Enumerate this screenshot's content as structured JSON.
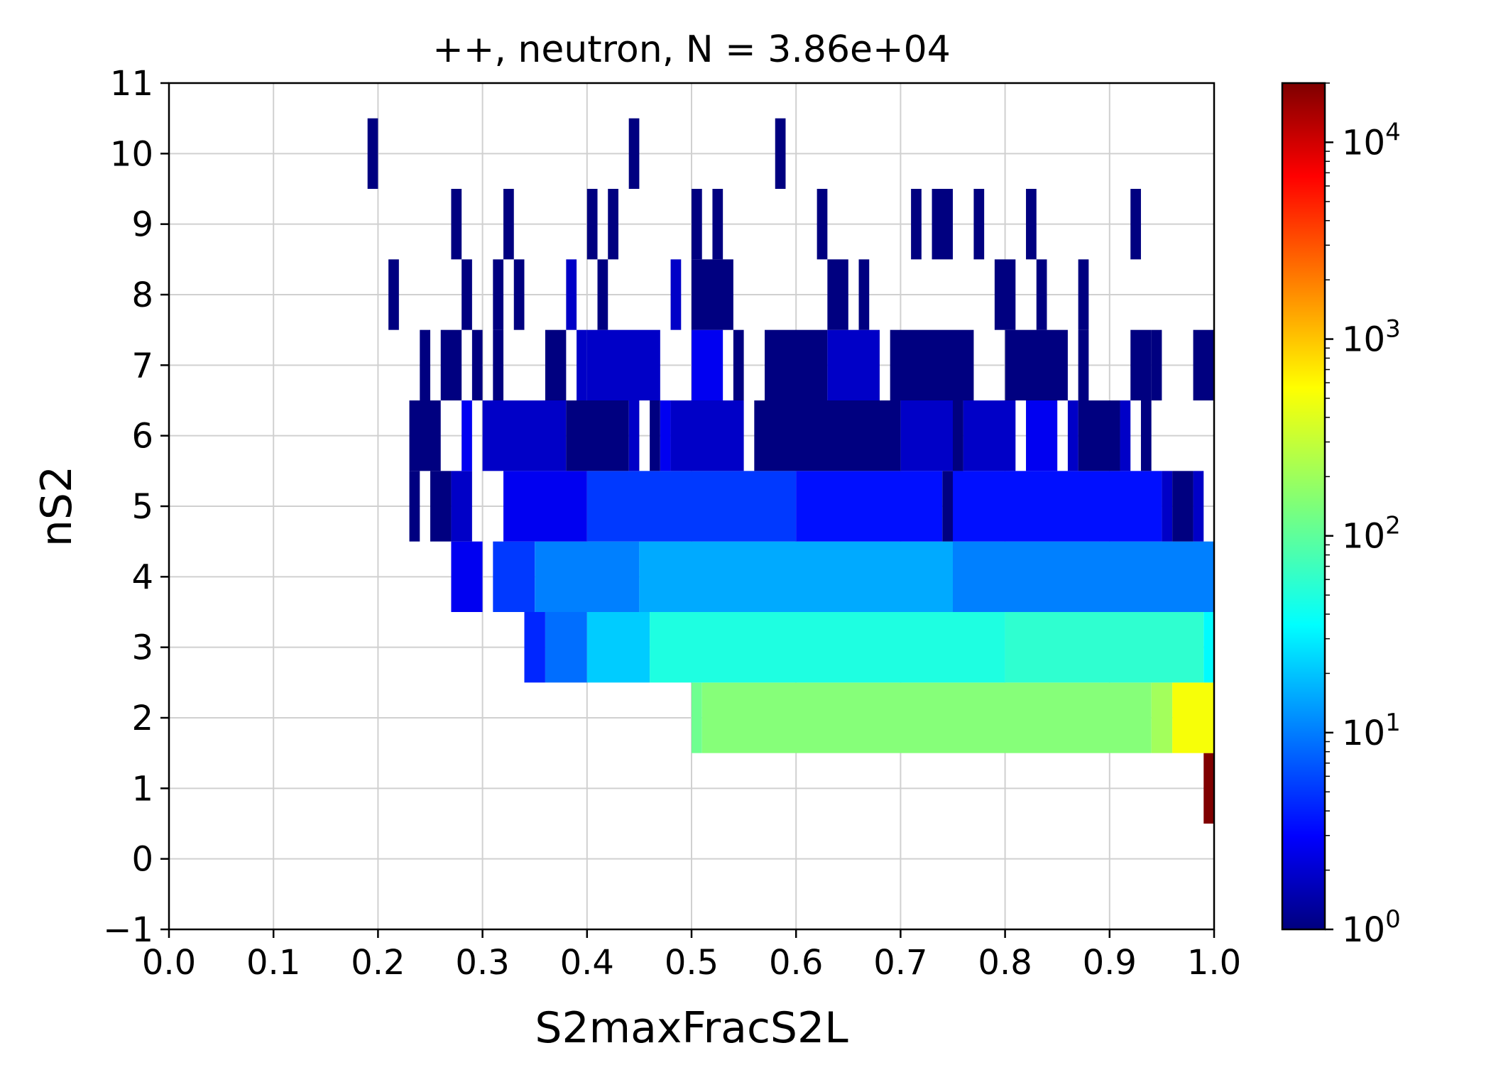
{
  "chart_data": {
    "type": "heatmap",
    "title": "++, neutron, N = 3.86e+04",
    "xlabel": "S2maxFracS2L",
    "ylabel": "nS2",
    "xlim": [
      0.0,
      1.0
    ],
    "ylim": [
      -1,
      11
    ],
    "x_ticks": [
      "0.0",
      "0.1",
      "0.2",
      "0.3",
      "0.4",
      "0.5",
      "0.6",
      "0.7",
      "0.8",
      "0.9",
      "1.0"
    ],
    "y_ticks": [
      "−1",
      "0",
      "1",
      "2",
      "3",
      "4",
      "5",
      "6",
      "7",
      "8",
      "9",
      "10",
      "11"
    ],
    "grid": true,
    "colormap": "jet",
    "colorbar": {
      "scale": "log",
      "range": [
        1,
        20000
      ],
      "tick_labels": [
        {
          "base": "10",
          "exp": "0",
          "value": 1
        },
        {
          "base": "10",
          "exp": "1",
          "value": 10
        },
        {
          "base": "10",
          "exp": "2",
          "value": 100
        },
        {
          "base": "10",
          "exp": "3",
          "value": 1000
        },
        {
          "base": "10",
          "exp": "4",
          "value": 10000
        }
      ]
    },
    "x_bin_width": 0.01,
    "rows": [
      {
        "nS2": 1,
        "bins": [
          [
            0.99,
            1.0,
            20000
          ]
        ]
      },
      {
        "nS2": 2,
        "bins": [
          [
            0.5,
            0.51,
            120
          ],
          [
            0.51,
            0.94,
            150
          ],
          [
            0.94,
            0.96,
            200
          ],
          [
            0.96,
            1.0,
            450
          ]
        ]
      },
      {
        "nS2": 3,
        "bins": [
          [
            0.34,
            0.36,
            5
          ],
          [
            0.36,
            0.4,
            10
          ],
          [
            0.4,
            0.46,
            25
          ],
          [
            0.46,
            0.8,
            55
          ],
          [
            0.8,
            0.99,
            65
          ],
          [
            0.99,
            1.0,
            40
          ]
        ]
      },
      {
        "nS2": 4,
        "bins": [
          [
            0.27,
            0.3,
            3
          ],
          [
            0.31,
            0.35,
            6
          ],
          [
            0.35,
            0.45,
            12
          ],
          [
            0.45,
            0.75,
            18
          ],
          [
            0.75,
            1.0,
            12
          ]
        ]
      },
      {
        "nS2": 5,
        "bins": [
          [
            0.23,
            0.24,
            1
          ],
          [
            0.25,
            0.27,
            1
          ],
          [
            0.27,
            0.29,
            2
          ],
          [
            0.32,
            0.4,
            3
          ],
          [
            0.4,
            0.6,
            6
          ],
          [
            0.6,
            0.74,
            4
          ],
          [
            0.74,
            0.75,
            1
          ],
          [
            0.75,
            0.95,
            4
          ],
          [
            0.95,
            0.96,
            2
          ],
          [
            0.96,
            0.98,
            1
          ],
          [
            0.98,
            0.99,
            2
          ]
        ]
      },
      {
        "nS2": 6,
        "bins": [
          [
            0.23,
            0.26,
            1
          ],
          [
            0.28,
            0.29,
            3
          ],
          [
            0.3,
            0.38,
            2
          ],
          [
            0.38,
            0.44,
            1
          ],
          [
            0.44,
            0.45,
            2
          ],
          [
            0.46,
            0.47,
            1
          ],
          [
            0.47,
            0.48,
            3
          ],
          [
            0.48,
            0.55,
            2
          ],
          [
            0.56,
            0.7,
            1
          ],
          [
            0.7,
            0.76,
            2
          ],
          [
            0.76,
            0.75,
            1
          ],
          [
            0.76,
            0.81,
            2
          ],
          [
            0.82,
            0.85,
            3
          ],
          [
            0.86,
            0.87,
            2
          ],
          [
            0.87,
            0.91,
            1
          ],
          [
            0.91,
            0.92,
            2
          ],
          [
            0.93,
            0.94,
            1
          ]
        ]
      },
      {
        "nS2": 7,
        "bins": [
          [
            0.24,
            0.25,
            1
          ],
          [
            0.26,
            0.28,
            1
          ],
          [
            0.29,
            0.3,
            1
          ],
          [
            0.31,
            0.32,
            1
          ],
          [
            0.36,
            0.38,
            1
          ],
          [
            0.39,
            0.4,
            2
          ],
          [
            0.4,
            0.47,
            2
          ],
          [
            0.5,
            0.53,
            3
          ],
          [
            0.54,
            0.55,
            1
          ],
          [
            0.57,
            0.63,
            1
          ],
          [
            0.63,
            0.68,
            2
          ],
          [
            0.69,
            0.77,
            1
          ],
          [
            0.8,
            0.86,
            1
          ],
          [
            0.87,
            0.88,
            1
          ],
          [
            0.92,
            0.94,
            1
          ],
          [
            0.94,
            0.95,
            1
          ],
          [
            0.98,
            1.0,
            1
          ]
        ]
      },
      {
        "nS2": 8,
        "bins": [
          [
            0.21,
            0.22,
            1
          ],
          [
            0.28,
            0.29,
            1
          ],
          [
            0.31,
            0.32,
            1
          ],
          [
            0.33,
            0.34,
            1
          ],
          [
            0.38,
            0.39,
            2
          ],
          [
            0.41,
            0.42,
            1
          ],
          [
            0.48,
            0.49,
            2
          ],
          [
            0.5,
            0.54,
            1
          ],
          [
            0.63,
            0.65,
            1
          ],
          [
            0.66,
            0.67,
            1
          ],
          [
            0.79,
            0.81,
            1
          ],
          [
            0.83,
            0.84,
            1
          ],
          [
            0.87,
            0.88,
            1
          ]
        ]
      },
      {
        "nS2": 9,
        "bins": [
          [
            0.27,
            0.28,
            1
          ],
          [
            0.32,
            0.33,
            1
          ],
          [
            0.4,
            0.41,
            1
          ],
          [
            0.42,
            0.43,
            1
          ],
          [
            0.5,
            0.51,
            1
          ],
          [
            0.52,
            0.53,
            1
          ],
          [
            0.62,
            0.63,
            1
          ],
          [
            0.71,
            0.72,
            1
          ],
          [
            0.73,
            0.75,
            1
          ],
          [
            0.77,
            0.78,
            1
          ],
          [
            0.82,
            0.83,
            1
          ],
          [
            0.92,
            0.93,
            1
          ]
        ]
      },
      {
        "nS2": 10,
        "bins": [
          [
            0.19,
            0.2,
            1
          ],
          [
            0.44,
            0.45,
            1
          ],
          [
            0.58,
            0.59,
            1
          ]
        ]
      }
    ]
  }
}
